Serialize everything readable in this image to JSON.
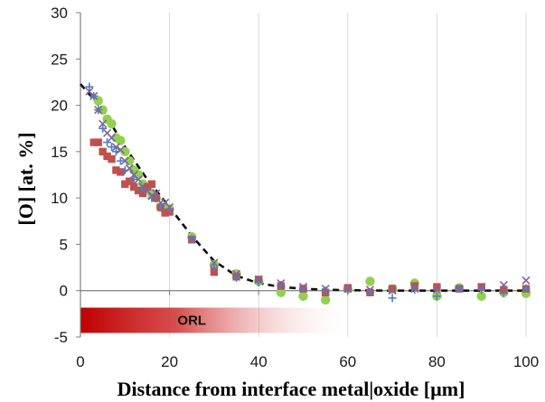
{
  "chart_data": {
    "type": "scatter",
    "title": "",
    "xlabel": "Distance from interface metal|oxide [µm]",
    "ylabel": "[O] [at. %]",
    "xlim": [
      0,
      100
    ],
    "ylim": [
      -5,
      30
    ],
    "xticks": [
      0,
      20,
      40,
      60,
      80,
      100
    ],
    "yticks": [
      -5,
      0,
      5,
      10,
      15,
      20,
      25,
      30
    ],
    "xtick_labels": [
      "0",
      "20",
      "40",
      "60",
      "80",
      "100"
    ],
    "ytick_labels": [
      "-5",
      "0",
      "5",
      "10",
      "15",
      "20",
      "25",
      "30"
    ],
    "grid": "vertical",
    "legend": "none",
    "band": {
      "label": "ORL",
      "x_start": 0,
      "x_end": 62,
      "y_center": -3.2,
      "color": "#c00000"
    },
    "series": [
      {
        "marker": "circle",
        "color": "#92d050",
        "x": [
          4,
          5,
          6,
          7,
          8,
          9,
          10,
          11,
          12,
          13,
          14,
          15,
          16,
          17,
          18,
          19,
          20,
          25,
          30,
          35,
          40,
          45,
          50,
          55,
          60,
          65,
          70,
          75,
          80,
          85,
          90,
          95,
          100
        ],
        "y": [
          20.5,
          19.5,
          18.5,
          18,
          16.5,
          16.2,
          15,
          14,
          13,
          12.5,
          11.5,
          11,
          10.5,
          10,
          9,
          9,
          8.8,
          5.8,
          2.8,
          1.8,
          1.0,
          -0.2,
          -0.6,
          -1.0,
          0.2,
          1.0,
          0.2,
          0.8,
          -0.6,
          0.3,
          -0.6,
          -0.2,
          -0.3
        ]
      },
      {
        "marker": "square",
        "color": "#c0504d",
        "x": [
          3,
          4,
          5,
          6,
          7,
          8,
          9,
          10,
          11,
          12,
          13,
          14,
          15,
          16,
          17,
          18,
          19,
          20,
          25,
          30,
          35,
          40,
          45,
          50,
          55,
          60,
          65,
          70,
          75,
          80,
          85,
          90,
          95,
          100
        ],
        "y": [
          16,
          16,
          15,
          14.5,
          14.2,
          13,
          12.8,
          11.5,
          11.8,
          11.2,
          10.8,
          10.5,
          11.2,
          11.5,
          10,
          9,
          8.4,
          8.5,
          5.5,
          2,
          1.5,
          1.2,
          0.5,
          0.2,
          -0.2,
          0.3,
          -0.2,
          0.2,
          0.5,
          0.4,
          0.2,
          0.4,
          0.1,
          0.2
        ]
      },
      {
        "marker": "cross",
        "color": "#8064a2",
        "x": [
          2,
          3,
          4,
          5,
          6,
          7,
          8,
          9,
          10,
          11,
          12,
          13,
          14,
          15,
          16,
          17,
          18,
          19,
          20,
          25,
          30,
          35,
          40,
          45,
          50,
          55,
          60,
          65,
          70,
          75,
          80,
          85,
          90,
          95,
          100
        ],
        "y": [
          21.5,
          21,
          19.5,
          18,
          17,
          16.5,
          15.5,
          15.2,
          14,
          13.2,
          12.5,
          12,
          11.2,
          10.8,
          10.2,
          10.5,
          9.5,
          9.5,
          9,
          5.5,
          3,
          1.8,
          1.2,
          0.8,
          0.4,
          0.2,
          0.2,
          0.1,
          0.0,
          0.2,
          0.1,
          0.2,
          0.4,
          0.6,
          1.1
        ]
      },
      {
        "marker": "plus",
        "color": "#4f81bd",
        "x": [
          2,
          3,
          4,
          5,
          6,
          7,
          8,
          9,
          10,
          12,
          14,
          16,
          18,
          20,
          25,
          30,
          35,
          40,
          45,
          50,
          55,
          60,
          65,
          70,
          75,
          80,
          85,
          90,
          95,
          100
        ],
        "y": [
          22,
          21,
          19.5,
          17.5,
          16,
          15.5,
          15,
          14,
          13,
          12,
          11,
          10,
          9.2,
          8.8,
          5.6,
          2.5,
          1.4,
          0.9,
          0.6,
          0.2,
          0.0,
          0.1,
          -0.2,
          -0.8,
          0.1,
          -0.6,
          0.2,
          0.1,
          -0.3,
          0.2
        ]
      },
      {
        "type": "line",
        "style": "dashed",
        "color": "#111111",
        "x": [
          0,
          5,
          10,
          15,
          20,
          25,
          30,
          35,
          40,
          45,
          50,
          55,
          60,
          65,
          70,
          75,
          80,
          85,
          90,
          95,
          100
        ],
        "y": [
          22.3,
          19.5,
          15.5,
          12,
          9,
          5.9,
          3.2,
          1.6,
          0.8,
          0.4,
          0.2,
          0.1,
          0.05,
          0.02,
          0.0,
          0.0,
          0.0,
          0.0,
          0.0,
          0.0,
          0.0
        ]
      }
    ]
  }
}
